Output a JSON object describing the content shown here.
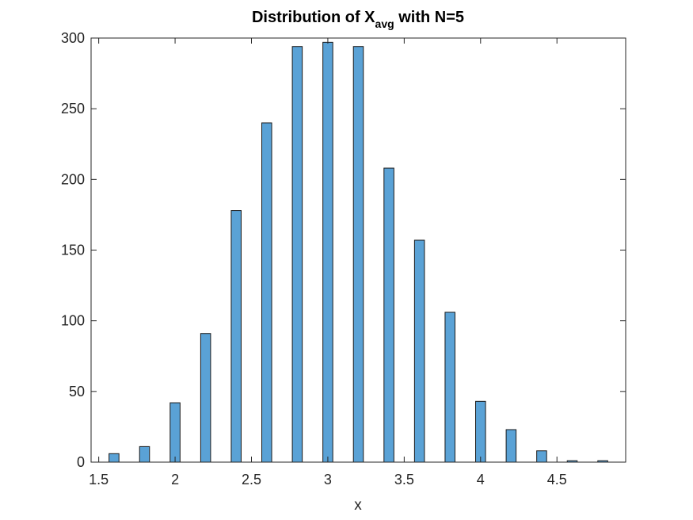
{
  "chart_data": {
    "type": "bar",
    "title_main": "Distribution of X",
    "title_sub": "avg",
    "title_rest": " with N=5",
    "xlabel": "x",
    "ylabel": "",
    "xlim": [
      1.45,
      4.95
    ],
    "ylim": [
      0,
      300
    ],
    "bar_width": 0.065,
    "xticks": [
      1.5,
      2,
      2.5,
      3,
      3.5,
      4,
      4.5
    ],
    "xtick_labels": [
      "1.5",
      "2",
      "2.5",
      "3",
      "3.5",
      "4",
      "4.5"
    ],
    "yticks": [
      0,
      50,
      100,
      150,
      200,
      250,
      300
    ],
    "ytick_labels": [
      "0",
      "50",
      "100",
      "150",
      "200",
      "250",
      "300"
    ],
    "grid": false,
    "bar_color": "#5aa2d6",
    "edge_color": "#1a1a1a",
    "x": [
      1.6,
      1.8,
      2.0,
      2.2,
      2.4,
      2.6,
      2.8,
      3.0,
      3.2,
      3.4,
      3.6,
      3.8,
      4.0,
      4.2,
      4.4,
      4.6,
      4.8
    ],
    "values": [
      6,
      11,
      42,
      91,
      178,
      240,
      294,
      297,
      294,
      208,
      157,
      106,
      43,
      23,
      8,
      1,
      1
    ]
  }
}
